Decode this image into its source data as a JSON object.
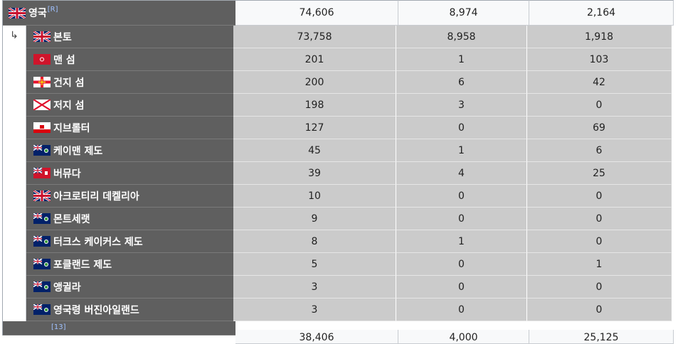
{
  "top_row": {
    "name": "영국",
    "ref": "[R]",
    "values": [
      "74,606",
      "8,974",
      "2,164"
    ]
  },
  "indent_marker": "↳",
  "rows": [
    {
      "name": "본토",
      "flag": "uk",
      "values": [
        "73,758",
        "8,958",
        "1,918"
      ]
    },
    {
      "name": "맨 섬",
      "flag": "isle-of-man",
      "values": [
        "201",
        "1",
        "103"
      ]
    },
    {
      "name": "건지 섬",
      "flag": "guernsey",
      "values": [
        "200",
        "6",
        "42"
      ]
    },
    {
      "name": "저지 섬",
      "flag": "jersey",
      "values": [
        "198",
        "3",
        "0"
      ]
    },
    {
      "name": "지브롤터",
      "flag": "gibraltar",
      "values": [
        "127",
        "0",
        "69"
      ]
    },
    {
      "name": "케이맨 제도",
      "flag": "blue-ensign",
      "values": [
        "45",
        "1",
        "6"
      ]
    },
    {
      "name": "버뮤다",
      "flag": "red-ensign",
      "values": [
        "39",
        "4",
        "25"
      ]
    },
    {
      "name": "아크로티리 데켈리아",
      "flag": "uk",
      "values": [
        "10",
        "0",
        "0"
      ]
    },
    {
      "name": "몬트세랫",
      "flag": "blue-ensign",
      "values": [
        "9",
        "0",
        "0"
      ]
    },
    {
      "name": "터크스 케이커스 제도",
      "flag": "blue-ensign",
      "values": [
        "8",
        "1",
        "0"
      ]
    },
    {
      "name": "포클랜드 제도",
      "flag": "blue-ensign",
      "values": [
        "5",
        "0",
        "1"
      ]
    },
    {
      "name": "앵귈라",
      "flag": "blue-ensign",
      "values": [
        "3",
        "0",
        "0"
      ]
    },
    {
      "name": "영국령 버진아일랜드",
      "flag": "blue-ensign",
      "values": [
        "3",
        "0",
        "0"
      ]
    }
  ],
  "bottom_partial": {
    "ref": "[13]",
    "values": [
      "38,406",
      "4,000",
      "25,125"
    ]
  }
}
